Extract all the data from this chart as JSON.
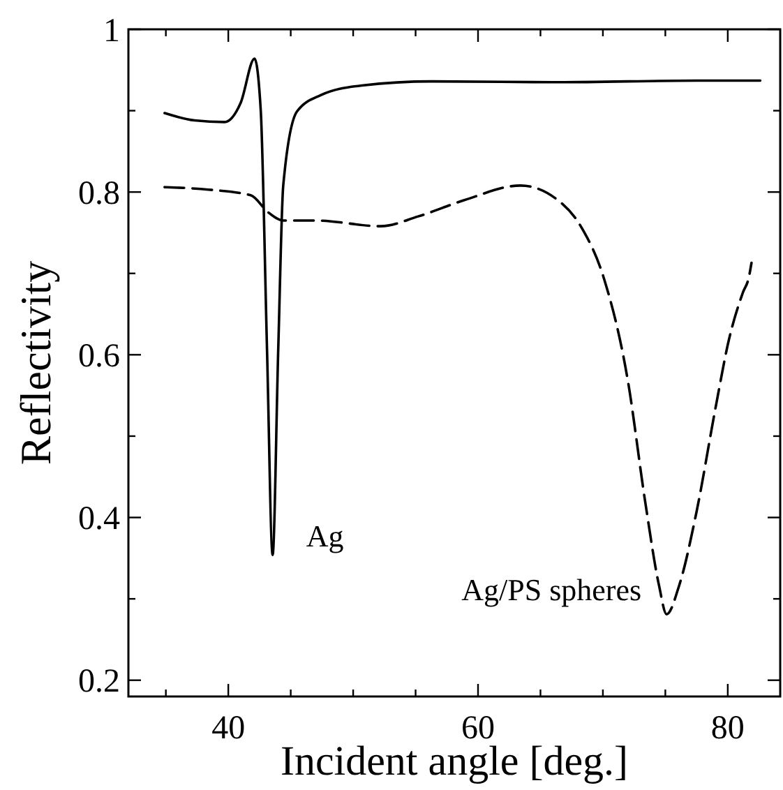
{
  "chart_data": {
    "type": "line",
    "xlabel": "Incident angle [deg.]",
    "ylabel": "Reflectivity",
    "xlim": [
      32,
      84.2
    ],
    "ylim": [
      0.18,
      1
    ],
    "xticks": [
      {
        "value": 35,
        "label": null
      },
      40,
      {
        "value": 45,
        "label": null
      },
      {
        "value": 50,
        "label": null
      },
      {
        "value": 55,
        "label": null
      },
      60,
      {
        "value": 65,
        "label": null
      },
      {
        "value": 70,
        "label": null
      },
      {
        "value": 75,
        "label": null
      },
      80
    ],
    "yticks": [
      0.2,
      {
        "value": 0.3,
        "label": null
      },
      0.4,
      {
        "value": 0.5,
        "label": null
      },
      0.6,
      {
        "value": 0.7,
        "label": null
      },
      0.8,
      {
        "value": 0.9,
        "label": null
      },
      1
    ],
    "grid": false,
    "marker": "none",
    "series": [
      {
        "name": "Ag",
        "color": "#000000",
        "line_style": "solid",
        "x": [
          34.9,
          37.3,
          39.7,
          41.0,
          42.1,
          42.6,
          43.1,
          43.55,
          44.0,
          44.4,
          45.5,
          47.4,
          50.7,
          56.3,
          66.4,
          77.5,
          82.6
        ],
        "values": [
          0.897,
          0.888,
          0.886,
          0.91,
          0.964,
          0.9,
          0.607,
          0.354,
          0.607,
          0.808,
          0.899,
          0.919,
          0.931,
          0.936,
          0.935,
          0.937,
          0.937
        ]
      },
      {
        "name": "Ag/PS spheres",
        "color": "#000000",
        "line_style": "dashed",
        "x": [
          34.9,
          38.4,
          41.8,
          43.2,
          44.4,
          47.0,
          52.2,
          55.2,
          58.9,
          63.4,
          66.4,
          68.3,
          70.1,
          72.0,
          73.4,
          74.5,
          75.1,
          76.1,
          77.5,
          79.0,
          80.1,
          81.2,
          81.7,
          81.9
        ],
        "values": [
          0.806,
          0.803,
          0.796,
          0.775,
          0.765,
          0.765,
          0.758,
          0.77,
          0.79,
          0.808,
          0.79,
          0.756,
          0.693,
          0.568,
          0.418,
          0.316,
          0.281,
          0.316,
          0.407,
          0.533,
          0.619,
          0.676,
          0.696,
          0.713
        ]
      }
    ]
  }
}
